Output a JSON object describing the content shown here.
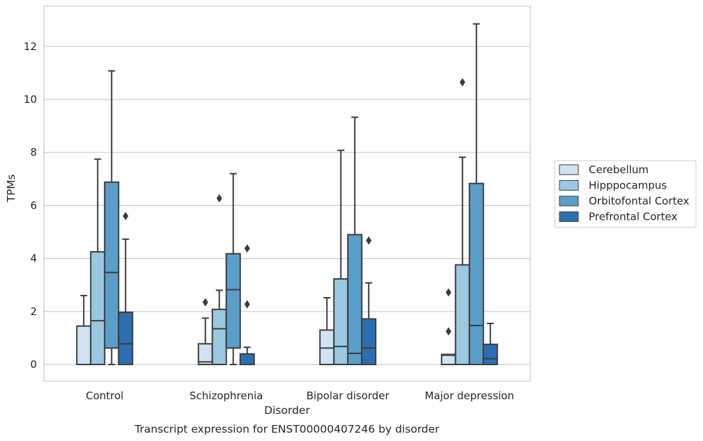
{
  "chart_data": {
    "type": "box",
    "xlabel": "Disorder",
    "ylabel": "TPMs",
    "caption": "Transcript expression for ENST00000407246 by disorder",
    "ylim": [
      -0.6,
      13.5
    ],
    "yticks": [
      0,
      2,
      4,
      6,
      8,
      10,
      12
    ],
    "grid": "horizontal",
    "legend_position": "right",
    "categories": [
      "Control",
      "Schizophrenia",
      "Bipolar disorder",
      "Major depression"
    ],
    "series": [
      {
        "name": "Cerebellum",
        "color": "#d1e2f2",
        "boxes": [
          {
            "whislo": 0,
            "q1": 0,
            "med": 0,
            "q3": 1.45,
            "whishi": 2.6,
            "fliers": []
          },
          {
            "whislo": 0,
            "q1": 0,
            "med": 0.1,
            "q3": 0.78,
            "whishi": 1.75,
            "fliers": [
              2.35
            ]
          },
          {
            "whislo": 0,
            "q1": 0,
            "med": 0.62,
            "q3": 1.3,
            "whishi": 2.52,
            "fliers": []
          },
          {
            "whislo": 0,
            "q1": 0,
            "med": 0.35,
            "q3": 0.38,
            "whishi": 0.38,
            "fliers": [
              1.25,
              2.72
            ]
          }
        ]
      },
      {
        "name": "Hipppocampus",
        "color": "#9ac8e0",
        "boxes": [
          {
            "whislo": 0,
            "q1": 0,
            "med": 1.65,
            "q3": 4.25,
            "whishi": 7.75,
            "fliers": []
          },
          {
            "whislo": 0,
            "q1": 0,
            "med": 1.35,
            "q3": 2.08,
            "whishi": 2.8,
            "fliers": [
              6.27
            ]
          },
          {
            "whislo": 0,
            "q1": 0,
            "med": 0.68,
            "q3": 3.23,
            "whishi": 8.08,
            "fliers": []
          },
          {
            "whislo": 0,
            "q1": 0,
            "med": 0,
            "q3": 3.76,
            "whishi": 7.82,
            "fliers": [
              10.65
            ]
          }
        ]
      },
      {
        "name": "Orbitofontal Cortex",
        "color": "#5a9ec9",
        "boxes": [
          {
            "whislo": 0,
            "q1": 0.62,
            "med": 3.47,
            "q3": 6.88,
            "whishi": 11.08,
            "fliers": []
          },
          {
            "whislo": 0,
            "q1": 0.62,
            "med": 2.82,
            "q3": 4.18,
            "whishi": 7.2,
            "fliers": []
          },
          {
            "whislo": 0,
            "q1": 0,
            "med": 0.42,
            "q3": 4.9,
            "whishi": 9.33,
            "fliers": []
          },
          {
            "whislo": 0,
            "q1": 0,
            "med": 1.47,
            "q3": 6.83,
            "whishi": 12.85,
            "fliers": []
          }
        ]
      },
      {
        "name": "Prefrontal Cortex",
        "color": "#2c6fb0",
        "boxes": [
          {
            "whislo": 0,
            "q1": 0,
            "med": 0.78,
            "q3": 1.97,
            "whishi": 4.73,
            "fliers": [
              5.6
            ]
          },
          {
            "whislo": 0,
            "q1": 0,
            "med": 0,
            "q3": 0.4,
            "whishi": 0.65,
            "fliers": [
              2.27,
              4.38
            ]
          },
          {
            "whislo": 0,
            "q1": 0,
            "med": 0.62,
            "q3": 1.72,
            "whishi": 3.08,
            "fliers": [
              4.68
            ]
          },
          {
            "whislo": 0,
            "q1": 0,
            "med": 0.22,
            "q3": 0.76,
            "whishi": 1.55,
            "fliers": []
          }
        ]
      }
    ]
  }
}
